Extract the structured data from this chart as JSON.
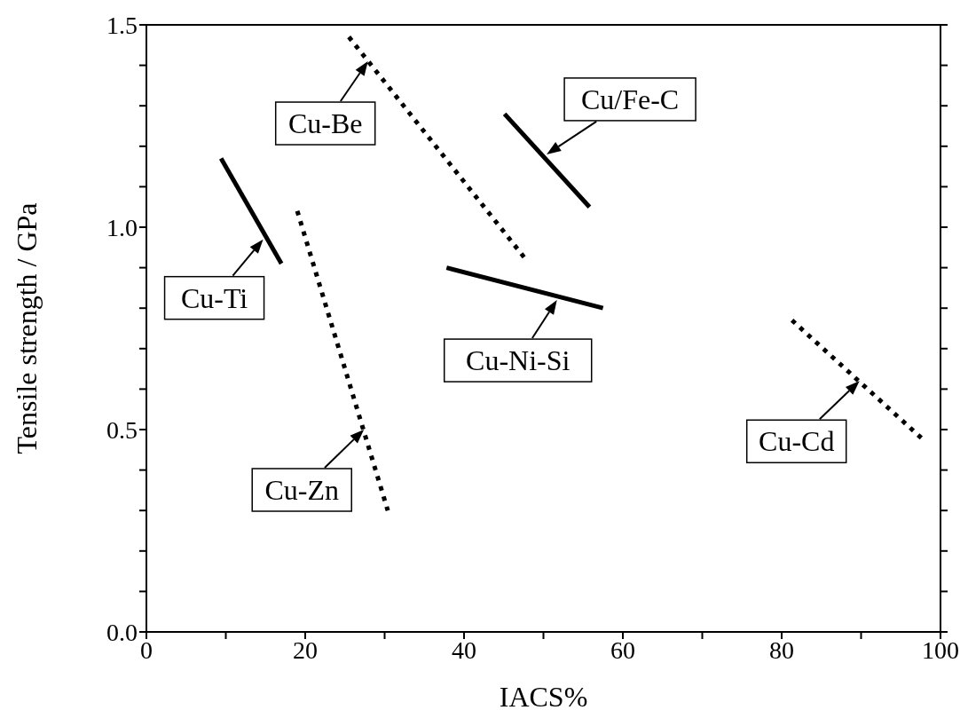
{
  "chart_data": {
    "type": "line",
    "xlabel": "IACS%",
    "ylabel": "Tensile strength / GPa",
    "xlim": [
      0,
      100
    ],
    "xticks": [
      0,
      {
        "value": 10,
        "label": null
      },
      20,
      {
        "value": 30,
        "label": null
      },
      40,
      {
        "value": 50,
        "label": null
      },
      60,
      {
        "value": 70,
        "label": null
      },
      80,
      {
        "value": 90,
        "label": null
      },
      100
    ],
    "ylim": [
      0,
      1.5
    ],
    "yticks": [
      {
        "value": 0,
        "label": "0.0"
      },
      {
        "value": 0.1,
        "label": null
      },
      {
        "value": 0.2,
        "label": null
      },
      {
        "value": 0.3,
        "label": null
      },
      {
        "value": 0.4,
        "label": null
      },
      0.5,
      {
        "value": 0.6,
        "label": null
      },
      {
        "value": 0.7,
        "label": null
      },
      {
        "value": 0.8,
        "label": null
      },
      {
        "value": 0.9,
        "label": null
      },
      {
        "value": 1.0,
        "label": "1.0"
      },
      {
        "value": 1.1,
        "label": null
      },
      {
        "value": 1.2,
        "label": null
      },
      {
        "value": 1.3,
        "label": null
      },
      {
        "value": 1.4,
        "label": null
      },
      1.5
    ],
    "series": [
      {
        "color": "#000000",
        "line_style": "dotted",
        "x": [
          25.5,
          47.8
        ],
        "values": [
          1.47,
          0.92
        ]
      },
      {
        "color": "#000000",
        "line_style": "solid",
        "x": [
          45.1,
          55.8
        ],
        "values": [
          1.28,
          1.05
        ]
      },
      {
        "color": "#000000",
        "line_style": "solid",
        "x": [
          9.4,
          17.0
        ],
        "values": [
          1.17,
          0.91
        ]
      },
      {
        "color": "#000000",
        "line_style": "dotted",
        "x": [
          19.0,
          30.4
        ],
        "values": [
          1.04,
          0.3
        ]
      },
      {
        "color": "#000000",
        "line_style": "solid",
        "x": [
          37.8,
          57.5
        ],
        "values": [
          0.9,
          0.8
        ]
      },
      {
        "color": "#000000",
        "line_style": "dotted",
        "x": [
          81.3,
          98.1
        ],
        "values": [
          0.77,
          0.47
        ]
      }
    ],
    "annotations": [
      {
        "text": "Cu-Be",
        "x": 27.9,
        "y": 1.41
      },
      {
        "text": "Cu/Fe-C",
        "x": 50.4,
        "y": 1.18
      },
      {
        "text": "Cu-Ti",
        "x": 14.7,
        "y": 0.97
      },
      {
        "text": "Cu-Zn",
        "x": 27.4,
        "y": 0.5
      },
      {
        "text": "Cu-Ni-Si",
        "x": 51.7,
        "y": 0.82
      },
      {
        "text": "Cu-Cd",
        "x": 89.8,
        "y": 0.62
      }
    ]
  }
}
